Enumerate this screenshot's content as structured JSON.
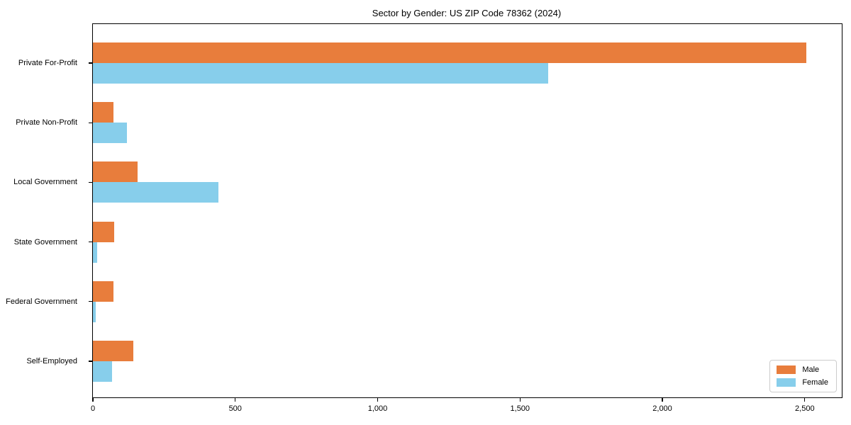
{
  "chart_data": {
    "type": "bar",
    "orientation": "horizontal",
    "title": "Sector by Gender: US ZIP Code 78362 (2024)",
    "categories": [
      "Private For-Profit",
      "Private Non-Profit",
      "Local Government",
      "State Government",
      "Federal Government",
      "Self-Employed"
    ],
    "series": [
      {
        "name": "Male",
        "color": "#e87d3c",
        "values": [
          2505,
          73,
          156,
          75,
          72,
          141
        ]
      },
      {
        "name": "Female",
        "color": "#87ceeb",
        "values": [
          1600,
          119,
          442,
          16,
          9,
          66
        ]
      }
    ],
    "xlabel": "",
    "ylabel": "",
    "xlim": [
      0,
      2630
    ],
    "xticks": [
      0,
      500,
      1000,
      1500,
      2000,
      2500
    ],
    "xtick_labels": [
      "0",
      "500",
      "1,000",
      "1,500",
      "2,000",
      "2,500"
    ],
    "grid": false,
    "legend_position": "lower right"
  }
}
